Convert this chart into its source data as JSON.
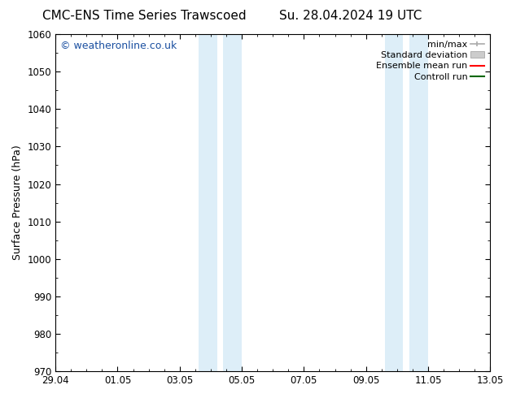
{
  "title_left": "CMC-ENS Time Series Trawscoed",
  "title_right": "Su. 28.04.2024 19 UTC",
  "ylabel": "Surface Pressure (hPa)",
  "ylim": [
    970,
    1060
  ],
  "yticks": [
    970,
    980,
    990,
    1000,
    1010,
    1020,
    1030,
    1040,
    1050,
    1060
  ],
  "xtick_labels": [
    "29.04",
    "01.05",
    "03.05",
    "05.05",
    "07.05",
    "09.05",
    "11.05",
    "13.05"
  ],
  "xtick_positions": [
    0,
    2,
    4,
    6,
    8,
    10,
    12,
    14
  ],
  "shaded_bands": [
    {
      "x_start": 4.6,
      "x_end": 5.2,
      "color": "#ddeef8"
    },
    {
      "x_start": 5.4,
      "x_end": 6.0,
      "color": "#ddeef8"
    },
    {
      "x_start": 10.6,
      "x_end": 11.2,
      "color": "#ddeef8"
    },
    {
      "x_start": 11.4,
      "x_end": 12.0,
      "color": "#ddeef8"
    }
  ],
  "watermark": "© weatheronline.co.uk",
  "watermark_color": "#1a4fa0",
  "legend_entries": [
    {
      "label": "min/max",
      "color": "#aaaaaa",
      "style": "minmax"
    },
    {
      "label": "Standard deviation",
      "color": "#cccccc",
      "style": "band"
    },
    {
      "label": "Ensemble mean run",
      "color": "#ff0000",
      "style": "line"
    },
    {
      "label": "Controll run",
      "color": "#006600",
      "style": "line"
    }
  ],
  "bg_color": "#ffffff",
  "plot_bg_color": "#ffffff",
  "title_fontsize": 11,
  "axis_label_fontsize": 9,
  "tick_fontsize": 8.5,
  "legend_fontsize": 8,
  "watermark_fontsize": 9
}
